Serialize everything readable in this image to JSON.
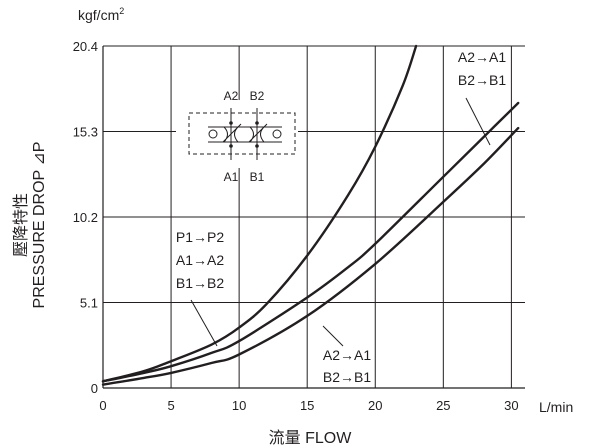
{
  "chart_data": {
    "type": "line",
    "y_unit_label": "kgf/cm",
    "y_unit_superscript": "2",
    "x_unit_label": "L/min",
    "xlabel": "流量 FLOW",
    "ylabel_line1": "壓降特性",
    "ylabel_line2": "PRESSURE DROP ⊿P",
    "xlim": [
      0,
      31
    ],
    "ylim": [
      0,
      20.4
    ],
    "x_ticks": [
      0,
      5,
      10,
      15,
      20,
      25,
      30
    ],
    "x_tick_labels": [
      "0",
      "5",
      "10",
      "15",
      "20",
      "25",
      "30"
    ],
    "y_ticks": [
      0,
      5.1,
      10.2,
      15.3,
      20.4
    ],
    "y_tick_labels": [
      "0",
      "5.1",
      "10.2",
      "15.3",
      "20.4"
    ],
    "grid": true,
    "series": [
      {
        "x": [
          0,
          3,
          5,
          8,
          10,
          12,
          15,
          18,
          20,
          22,
          23
        ],
        "y": [
          0.4,
          1.0,
          1.6,
          2.6,
          3.6,
          5.0,
          7.9,
          11.5,
          14.4,
          18.0,
          20.4
        ]
      },
      {
        "x": [
          0,
          3,
          5,
          8,
          10,
          15,
          18,
          20,
          25,
          28,
          30.5
        ],
        "y": [
          0.4,
          0.9,
          1.3,
          2.1,
          2.8,
          5.4,
          7.2,
          8.6,
          12.6,
          15.0,
          17.0
        ]
      },
      {
        "x": [
          0,
          3,
          5,
          8,
          10,
          15,
          20,
          25,
          28,
          30.5
        ],
        "y": [
          0.2,
          0.6,
          0.9,
          1.5,
          2.0,
          4.3,
          7.4,
          11.1,
          13.4,
          15.5
        ]
      }
    ],
    "annotations": [
      {
        "lines": [
          "P1→P2",
          "A1→A2",
          "B1→B2"
        ]
      },
      {
        "lines": [
          "A2→A1",
          "B2→B1"
        ],
        "position": "top-right"
      },
      {
        "lines": [
          "A2→A1",
          "B2→B1"
        ],
        "position": "bottom-center"
      }
    ],
    "symbol": {
      "top_labels": [
        "A2",
        "B2"
      ],
      "bottom_labels": [
        "A1",
        "B1"
      ]
    }
  }
}
